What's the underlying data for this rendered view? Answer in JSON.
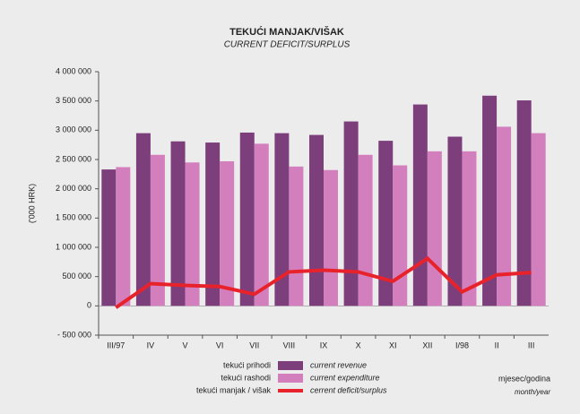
{
  "chart_data": {
    "type": "bar",
    "title": "TEKUĆI MANJAK/VIŠAK",
    "subtitle": "CURRENT DEFICIT/SURPLUS",
    "y_label": "('000 HRK)",
    "x_label": "mjesec/godina",
    "x_label_en": "month/year",
    "categories": [
      "III/97",
      "IV",
      "V",
      "VI",
      "VII",
      "VIII",
      "IX",
      "X",
      "XI",
      "XII",
      "I/98",
      "II",
      "III"
    ],
    "series": [
      {
        "name": "tekući prihodi",
        "name_en": "current revenue",
        "type": "bar",
        "color": "#7d3f7c",
        "values": [
          2330000,
          2950000,
          2810000,
          2790000,
          2960000,
          2950000,
          2920000,
          3150000,
          2820000,
          3440000,
          2890000,
          3590000,
          3510000
        ]
      },
      {
        "name": "tekući rashodi",
        "name_en": "current expenditure",
        "type": "bar",
        "color": "#d47fbd",
        "values": [
          2370000,
          2580000,
          2450000,
          2470000,
          2770000,
          2380000,
          2320000,
          2580000,
          2400000,
          2640000,
          2640000,
          3060000,
          2950000
        ]
      },
      {
        "name": "tekući manjak / višak",
        "name_en": "cerrent deficit/surplus",
        "type": "line",
        "color": "#e8222b",
        "values": [
          -30000,
          380000,
          350000,
          330000,
          200000,
          580000,
          610000,
          580000,
          420000,
          810000,
          240000,
          530000,
          570000
        ]
      }
    ],
    "ylim": [
      -500000,
      4000000
    ],
    "yticks": [
      {
        "value": -500000,
        "label": "- 500 000"
      },
      0,
      {
        "value": 500000,
        "label": "500 000"
      },
      {
        "value": 1000000,
        "label": "1 000 000"
      },
      {
        "value": 1500000,
        "label": "1 500 000"
      },
      {
        "value": 2000000,
        "label": "2 000 000"
      },
      {
        "value": 2500000,
        "label": "2 500 000"
      },
      {
        "value": 3000000,
        "label": "3 000 000"
      },
      {
        "value": 3500000,
        "label": "3 500 000"
      },
      {
        "value": 4000000,
        "label": "4 000 000"
      }
    ],
    "grid": false
  }
}
